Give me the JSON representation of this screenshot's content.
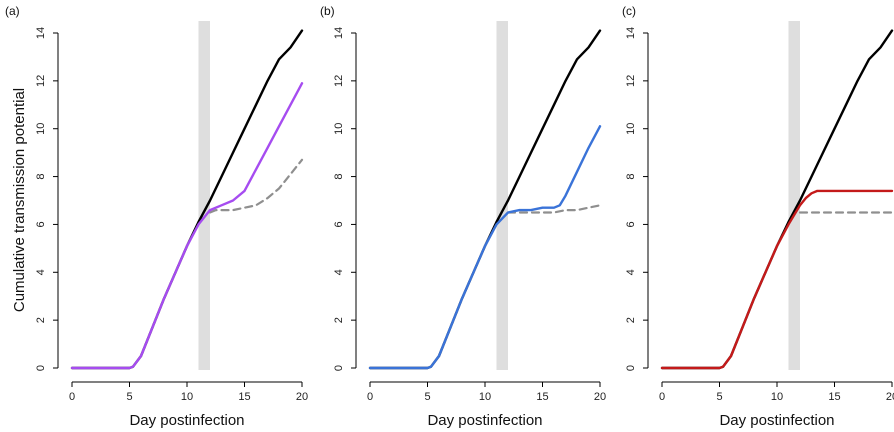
{
  "shared_ylabel": "Cumulative transmission potential",
  "colors": {
    "baseline": "#000000",
    "counterfactual": "#8f8f8f",
    "window": "#dedede"
  },
  "chart_data": [
    {
      "type": "line",
      "panel_label": "(a)",
      "xlabel": "Day postinfection",
      "ylabel": "Cumulative transmission potential",
      "xlim": [
        0,
        20
      ],
      "ylim": [
        0,
        14
      ],
      "xticks": [
        0,
        5,
        10,
        15,
        20
      ],
      "yticks": [
        0,
        2,
        4,
        6,
        8,
        10,
        12,
        14
      ],
      "shaded_window": [
        11,
        12
      ],
      "series": [
        {
          "color": "#000000",
          "dash": "solid",
          "x": [
            0,
            5,
            5.3,
            6,
            7,
            8,
            9,
            10,
            11,
            12,
            13,
            14,
            15,
            16,
            17,
            18,
            19,
            20
          ],
          "y": [
            0,
            0,
            0.05,
            0.5,
            1.7,
            2.9,
            4.0,
            5.1,
            6.1,
            7.0,
            8.0,
            9.0,
            10.0,
            11.0,
            12.0,
            12.9,
            13.4,
            14.1
          ]
        },
        {
          "color": "#8f8f8f",
          "dash": "dashed",
          "x": [
            12,
            12.5,
            13,
            14,
            15,
            16,
            17,
            18,
            19,
            20
          ],
          "y": [
            6.5,
            6.6,
            6.6,
            6.6,
            6.7,
            6.8,
            7.1,
            7.5,
            8.1,
            8.7
          ]
        },
        {
          "color": "#a64cf0",
          "dash": "solid",
          "x": [
            0,
            5,
            5.3,
            6,
            7,
            8,
            9,
            10,
            11,
            12,
            13,
            14,
            15,
            16,
            17,
            18,
            19,
            20
          ],
          "y": [
            0,
            0,
            0.05,
            0.5,
            1.7,
            2.9,
            4.0,
            5.1,
            6.0,
            6.6,
            6.8,
            7.0,
            7.4,
            8.3,
            9.2,
            10.1,
            11.0,
            11.9
          ]
        }
      ]
    },
    {
      "type": "line",
      "panel_label": "(b)",
      "xlabel": "Day postinfection",
      "xlim": [
        0,
        20
      ],
      "ylim": [
        0,
        14
      ],
      "xticks": [
        0,
        5,
        10,
        15,
        20
      ],
      "yticks": [
        0,
        2,
        4,
        6,
        8,
        10,
        12,
        14
      ],
      "shaded_window": [
        11,
        12
      ],
      "series": [
        {
          "color": "#000000",
          "dash": "solid",
          "x": [
            0,
            5,
            5.3,
            6,
            7,
            8,
            9,
            10,
            11,
            12,
            13,
            14,
            15,
            16,
            17,
            18,
            19,
            20
          ],
          "y": [
            0,
            0,
            0.05,
            0.5,
            1.7,
            2.9,
            4.0,
            5.1,
            6.1,
            7.0,
            8.0,
            9.0,
            10.0,
            11.0,
            12.0,
            12.9,
            13.4,
            14.1
          ]
        },
        {
          "color": "#8f8f8f",
          "dash": "dashed",
          "x": [
            12,
            13,
            14,
            15,
            16,
            17,
            18,
            19,
            20
          ],
          "y": [
            6.5,
            6.5,
            6.5,
            6.5,
            6.5,
            6.6,
            6.6,
            6.7,
            6.8
          ]
        },
        {
          "color": "#3a73d8",
          "dash": "solid",
          "x": [
            0,
            5,
            5.3,
            6,
            7,
            8,
            9,
            10,
            11,
            12,
            13,
            14,
            15,
            16,
            16.5,
            17,
            18,
            19,
            20
          ],
          "y": [
            0,
            0,
            0.05,
            0.5,
            1.7,
            2.9,
            4.0,
            5.1,
            6.0,
            6.5,
            6.6,
            6.6,
            6.7,
            6.7,
            6.8,
            7.2,
            8.2,
            9.2,
            10.1
          ]
        }
      ]
    },
    {
      "type": "line",
      "panel_label": "(c)",
      "xlabel": "Day postinfection",
      "xlim": [
        0,
        20
      ],
      "ylim": [
        0,
        14
      ],
      "xticks": [
        0,
        5,
        10,
        15,
        20
      ],
      "yticks": [
        0,
        2,
        4,
        6,
        8,
        10,
        12,
        14
      ],
      "shaded_window": [
        11,
        12
      ],
      "series": [
        {
          "color": "#000000",
          "dash": "solid",
          "x": [
            0,
            5,
            5.3,
            6,
            7,
            8,
            9,
            10,
            11,
            12,
            13,
            14,
            15,
            16,
            17,
            18,
            19,
            20
          ],
          "y": [
            0,
            0,
            0.05,
            0.5,
            1.7,
            2.9,
            4.0,
            5.1,
            6.1,
            7.0,
            8.0,
            9.0,
            10.0,
            11.0,
            12.0,
            12.9,
            13.4,
            14.1
          ]
        },
        {
          "color": "#8f8f8f",
          "dash": "dashed",
          "x": [
            12,
            13,
            14,
            15,
            16,
            17,
            18,
            19,
            20
          ],
          "y": [
            6.5,
            6.5,
            6.5,
            6.5,
            6.5,
            6.5,
            6.5,
            6.5,
            6.5
          ]
        },
        {
          "color": "#c41a1a",
          "dash": "solid",
          "x": [
            0,
            5,
            5.3,
            6,
            7,
            8,
            9,
            10,
            11,
            12,
            12.5,
            13,
            13.5,
            14,
            15,
            16,
            17,
            18,
            19,
            20
          ],
          "y": [
            0,
            0,
            0.05,
            0.5,
            1.7,
            2.9,
            4.0,
            5.1,
            6.0,
            6.8,
            7.1,
            7.3,
            7.4,
            7.4,
            7.4,
            7.4,
            7.4,
            7.4,
            7.4,
            7.4
          ]
        }
      ]
    }
  ]
}
